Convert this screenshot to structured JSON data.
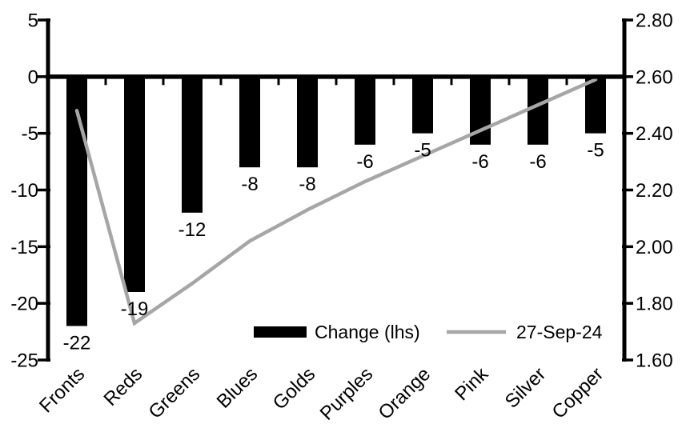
{
  "chart_data": {
    "type": "bar",
    "title": "",
    "categories": [
      "Fronts",
      "Reds",
      "Greens",
      "Blues",
      "Golds",
      "Purples",
      "Orange",
      "Pink",
      "Silver",
      "Copper"
    ],
    "series": [
      {
        "name": "Change (lhs)",
        "type": "bar",
        "axis": "left",
        "color": "#000000",
        "values": [
          -22,
          -19,
          -12,
          -8,
          -8,
          -6,
          -5,
          -6,
          -6,
          -5
        ],
        "data_labels": [
          "-22",
          "-19",
          "-12",
          "-8",
          "-8",
          "-6",
          "-5",
          "-6",
          "-6",
          "-5"
        ]
      },
      {
        "name": "27-Sep-24",
        "type": "line",
        "axis": "right",
        "color": "#a6a6a6",
        "values": [
          2.48,
          1.73,
          1.87,
          2.02,
          2.13,
          2.23,
          2.32,
          2.41,
          2.5,
          2.59
        ]
      }
    ],
    "left_axis": {
      "min": -25,
      "max": 5,
      "ticks": [
        "5",
        "0",
        "-5",
        "-10",
        "-15",
        "-20",
        "-25"
      ]
    },
    "right_axis": {
      "min": 1.6,
      "max": 2.8,
      "ticks": [
        "2.80",
        "2.60",
        "2.40",
        "2.20",
        "2.00",
        "1.80",
        "1.60"
      ]
    },
    "legend": [
      {
        "label": "Change (lhs)",
        "marker": "bar",
        "color": "#000000"
      },
      {
        "label": "27-Sep-24",
        "marker": "line",
        "color": "#a6a6a6"
      }
    ],
    "grid": false,
    "legend_position": "inside-bottom",
    "background": "#ffffff",
    "axis_color": "#000000"
  }
}
